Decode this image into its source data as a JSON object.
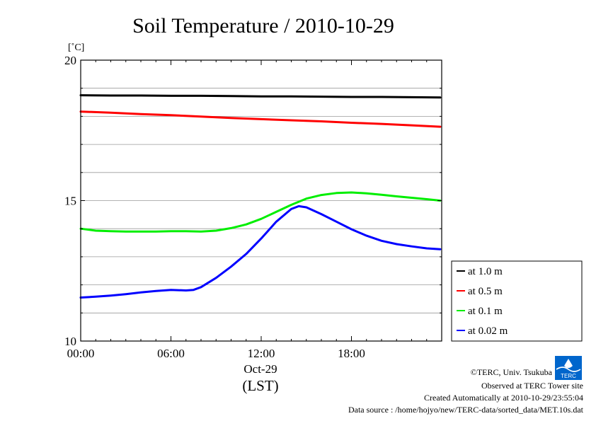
{
  "chart_data": {
    "type": "line",
    "title": "Soil Temperature / 2010-10-29",
    "ylabel": "[˚C]",
    "ylim": [
      10,
      20
    ],
    "xlim": [
      0,
      24
    ],
    "y_ticks": [
      {
        "value": 20,
        "label": "20"
      },
      {
        "value": 15,
        "label": "15"
      },
      {
        "value": 10,
        "label": "10"
      }
    ],
    "x_ticks": [
      {
        "value": 0,
        "label": "00:00"
      },
      {
        "value": 6,
        "label": "06:00"
      },
      {
        "value": 12,
        "label": "12:00"
      },
      {
        "value": 18,
        "label": "18:00"
      }
    ],
    "x_date_label": "Oct-29",
    "x_unit_label": "(LST)",
    "grid": true,
    "legend_position": "bottom-right outside",
    "series": [
      {
        "name": "at 1.0 m",
        "color": "#000000",
        "x": [
          0,
          2,
          4,
          6,
          8,
          10,
          12,
          14,
          16,
          18,
          20,
          22,
          23.9
        ],
        "y": [
          18.75,
          18.74,
          18.74,
          18.73,
          18.73,
          18.72,
          18.71,
          18.71,
          18.7,
          18.69,
          18.69,
          18.68,
          18.67
        ]
      },
      {
        "name": "at 0.5 m",
        "color": "#ff0000",
        "x": [
          0,
          2,
          4,
          6,
          8,
          10,
          12,
          14,
          16,
          18,
          20,
          22,
          23.9
        ],
        "y": [
          18.17,
          18.13,
          18.08,
          18.04,
          17.99,
          17.94,
          17.9,
          17.86,
          17.82,
          17.77,
          17.73,
          17.68,
          17.63
        ]
      },
      {
        "name": "at 0.1 m",
        "color": "#00ee00",
        "x": [
          0,
          1,
          2,
          3,
          4,
          5,
          6,
          7,
          8,
          9,
          10,
          11,
          12,
          13,
          14,
          15,
          16,
          17,
          18,
          19,
          20,
          21,
          22,
          23,
          23.9
        ],
        "y": [
          14.0,
          13.93,
          13.91,
          13.9,
          13.9,
          13.9,
          13.91,
          13.91,
          13.9,
          13.93,
          14.02,
          14.15,
          14.35,
          14.6,
          14.85,
          15.07,
          15.2,
          15.27,
          15.29,
          15.26,
          15.21,
          15.15,
          15.1,
          15.05,
          15.0
        ]
      },
      {
        "name": "at 0.02 m",
        "color": "#0000ff",
        "x": [
          0,
          1,
          2,
          3,
          4,
          5,
          6,
          7,
          7.5,
          8,
          9,
          10,
          11,
          12,
          13,
          14,
          14.5,
          15,
          16,
          17,
          18,
          19,
          20,
          21,
          22,
          23,
          23.9
        ],
        "y": [
          11.55,
          11.58,
          11.62,
          11.67,
          11.73,
          11.78,
          11.82,
          11.8,
          11.82,
          11.92,
          12.25,
          12.65,
          13.1,
          13.65,
          14.25,
          14.7,
          14.8,
          14.76,
          14.52,
          14.25,
          13.98,
          13.75,
          13.57,
          13.45,
          13.37,
          13.3,
          13.27
        ]
      }
    ]
  },
  "credits": {
    "copyright": "©TERC, Univ. Tsukuba",
    "observed": "Observed at TERC Tower site",
    "created": "Created Automatically at 2010-10-29/23:55:04",
    "source": "Data source : /home/hojyo/new/TERC-data/sorted_data/MET.10s.dat"
  },
  "logo": {
    "text": "TERC",
    "color": "#0066cc"
  }
}
